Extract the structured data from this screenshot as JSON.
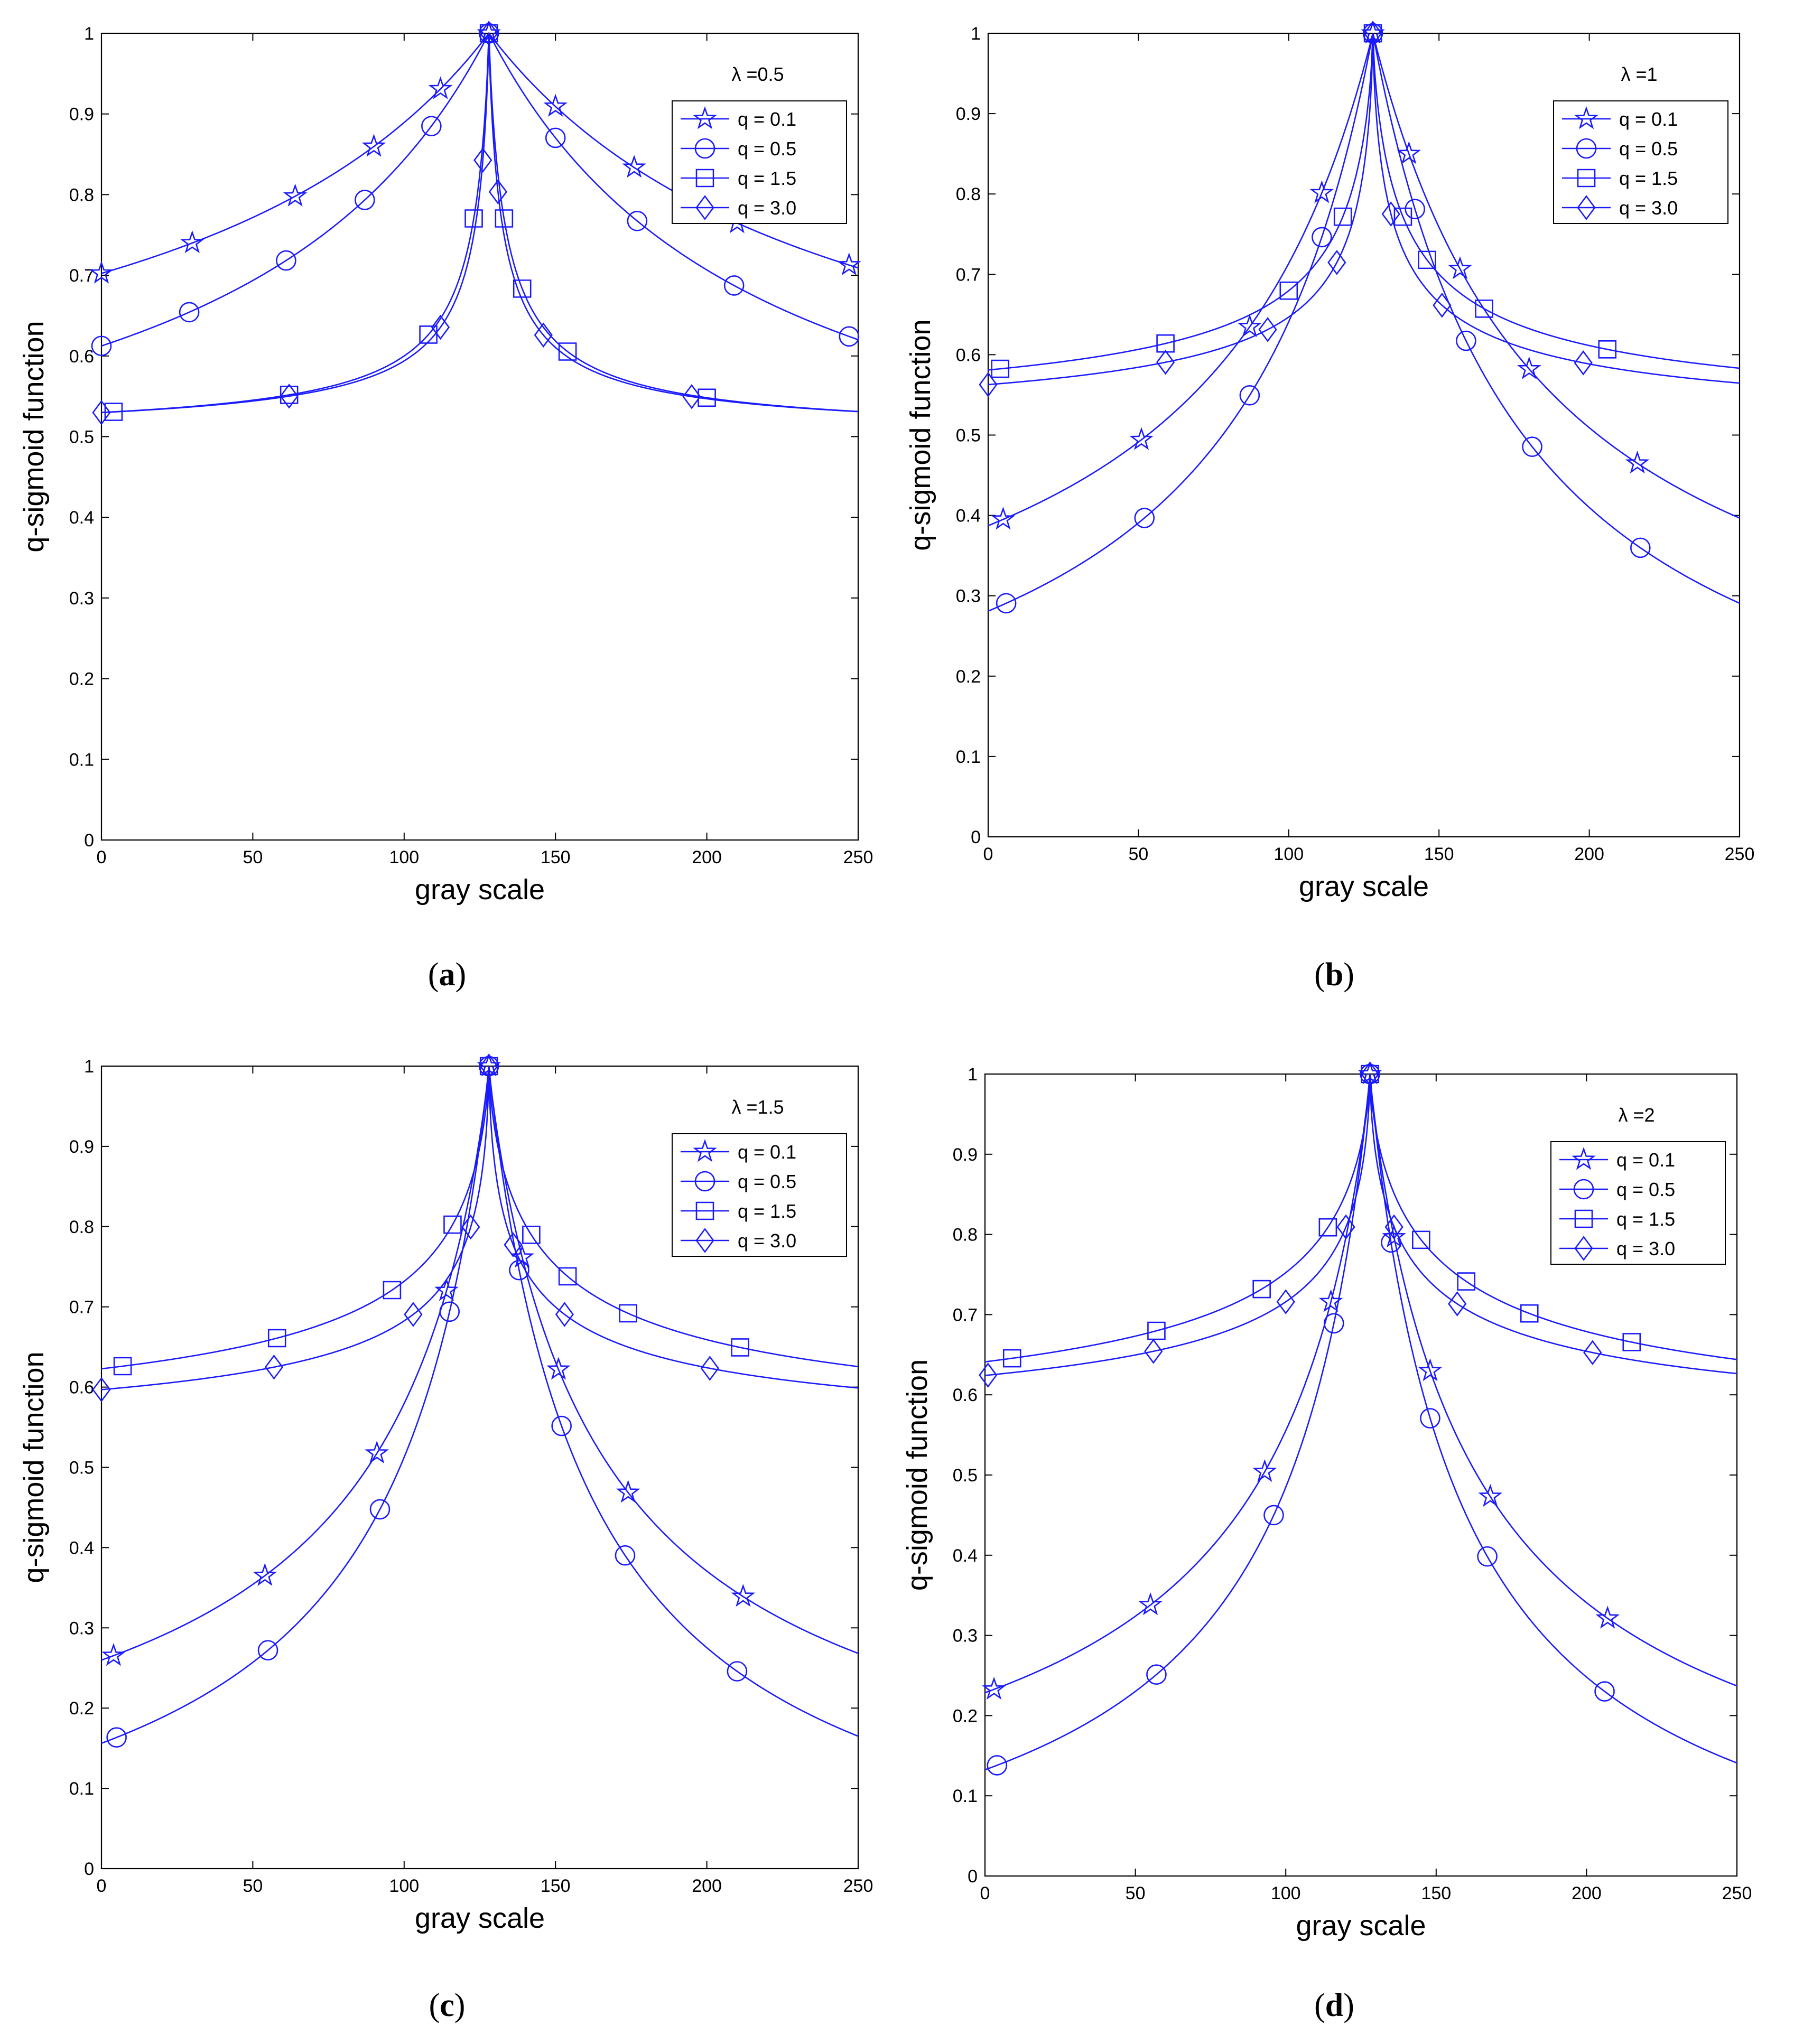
{
  "figure": {
    "captions": [
      "a",
      "b",
      "c",
      "d"
    ]
  },
  "chart_data": [
    {
      "type": "line",
      "panel_label": "a",
      "lambda": 0.5,
      "annotation": "λ =0.5",
      "xlabel": "gray scale",
      "ylabel": "q-sigmoid function",
      "xlim": [
        0,
        250
      ],
      "ylim": [
        0,
        1
      ],
      "xticks": [
        0,
        50,
        100,
        150,
        200,
        250
      ],
      "yticks": [
        0,
        0.1,
        0.2,
        0.3,
        0.4,
        0.5,
        0.6,
        0.7,
        0.8,
        0.9,
        1
      ],
      "peak": 128,
      "legend_position": "top-right",
      "series": [
        {
          "name": "q = 0.1",
          "marker": "star",
          "floor": 0.435,
          "width": 115,
          "shape": 1.0,
          "marker_x": [
            0,
            30,
            64,
            90,
            112,
            128,
            150,
            176,
            210,
            247
          ]
        },
        {
          "name": "q = 0.5",
          "marker": "circle",
          "floor": 0.34,
          "width": 90,
          "shape": 1.0,
          "marker_x": [
            0,
            29,
            61,
            87,
            109,
            128,
            150,
            177,
            209,
            247
          ]
        },
        {
          "name": "q = 1.5",
          "marker": "square",
          "floor": 0.5,
          "width": 6,
          "shape": 0.9,
          "marker_x": [
            4,
            62,
            108,
            123,
            128,
            133,
            139,
            154,
            200
          ]
        },
        {
          "name": "q = 3.0",
          "marker": "diamond",
          "floor": 0.5,
          "width": 5,
          "shape": 0.85,
          "marker_x": [
            0,
            62,
            112,
            126,
            128,
            131,
            146,
            195
          ]
        }
      ]
    },
    {
      "type": "line",
      "panel_label": "b",
      "lambda": 1,
      "annotation": "λ =1",
      "xlabel": "gray scale",
      "ylabel": "q-sigmoid function",
      "xlim": [
        0,
        250
      ],
      "ylim": [
        0,
        1
      ],
      "xticks": [
        0,
        50,
        100,
        150,
        200,
        250
      ],
      "yticks": [
        0,
        0.1,
        0.2,
        0.3,
        0.4,
        0.5,
        0.6,
        0.7,
        0.8,
        0.9,
        1
      ],
      "peak": 128,
      "legend_position": "top-right",
      "series": [
        {
          "name": "q = 0.1",
          "marker": "star",
          "floor": 0.1,
          "width": 60,
          "shape": 1.0,
          "marker_x": [
            5,
            51,
            87,
            111,
            128,
            140,
            157,
            180,
            216
          ]
        },
        {
          "name": "q = 0.5",
          "marker": "circle",
          "floor": 0.0,
          "width": 50,
          "shape": 1.0,
          "marker_x": [
            6,
            52,
            87,
            111,
            128,
            142,
            159,
            181,
            217
          ]
        },
        {
          "name": "q = 1.5",
          "marker": "square",
          "floor": 0.51,
          "width": 12,
          "shape": 0.75,
          "marker_x": [
            4,
            59,
            100,
            118,
            128,
            138,
            146,
            165,
            206
          ]
        },
        {
          "name": "q = 3.0",
          "marker": "diamond",
          "floor": 0.5,
          "width": 8,
          "shape": 0.7,
          "marker_x": [
            0,
            59,
            93,
            116,
            128,
            134,
            151,
            198
          ]
        }
      ]
    },
    {
      "type": "line",
      "panel_label": "c",
      "lambda": 1.5,
      "annotation": "λ =1.5",
      "xlabel": "gray scale",
      "ylabel": "q-sigmoid function",
      "xlim": [
        0,
        250
      ],
      "ylim": [
        0,
        1
      ],
      "xticks": [
        0,
        50,
        100,
        150,
        200,
        250
      ],
      "yticks": [
        0,
        0.1,
        0.2,
        0.3,
        0.4,
        0.5,
        0.6,
        0.7,
        0.8,
        0.9,
        1
      ],
      "peak": 128,
      "legend_position": "top-right",
      "series": [
        {
          "name": "q = 0.1",
          "marker": "star",
          "floor": 0.0,
          "width": 40,
          "shape": 0.9,
          "marker_x": [
            4,
            54,
            91,
            114,
            128,
            139,
            151,
            174,
            212
          ]
        },
        {
          "name": "q = 0.5",
          "marker": "circle",
          "floor": -0.09,
          "width": 35,
          "shape": 0.95,
          "marker_x": [
            5,
            55,
            92,
            115,
            128,
            138,
            152,
            173,
            210
          ]
        },
        {
          "name": "q = 1.5",
          "marker": "square",
          "floor": 0.52,
          "width": 20,
          "shape": 0.7,
          "marker_x": [
            7,
            58,
            96,
            116,
            128,
            142,
            154,
            174,
            211
          ]
        },
        {
          "name": "q = 3.0",
          "marker": "diamond",
          "floor": 0.52,
          "width": 10,
          "shape": 0.65,
          "marker_x": [
            0,
            57,
            103,
            122,
            128,
            136,
            153,
            201
          ]
        }
      ]
    },
    {
      "type": "line",
      "panel_label": "d",
      "lambda": 2,
      "annotation": "λ =2",
      "xlabel": "gray scale",
      "ylabel": "q-sigmoid function",
      "xlim": [
        0,
        250
      ],
      "ylim": [
        0,
        1
      ],
      "xticks": [
        0,
        50,
        100,
        150,
        200,
        250
      ],
      "yticks": [
        0,
        0.1,
        0.2,
        0.3,
        0.4,
        0.5,
        0.6,
        0.7,
        0.8,
        0.9,
        1
      ],
      "peak": 128,
      "legend_position": "top-right",
      "series": [
        {
          "name": "q = 0.1",
          "marker": "star",
          "floor": -0.03,
          "width": 38,
          "shape": 0.9,
          "marker_x": [
            3,
            55,
            93,
            115,
            128,
            136,
            148,
            168,
            207
          ]
        },
        {
          "name": "q = 0.5",
          "marker": "circle",
          "floor": -0.1,
          "width": 32,
          "shape": 0.95,
          "marker_x": [
            4,
            57,
            96,
            116,
            128,
            135,
            148,
            167,
            206
          ]
        },
        {
          "name": "q = 1.5",
          "marker": "square",
          "floor": 0.53,
          "width": 24,
          "shape": 0.7,
          "marker_x": [
            9,
            57,
            92,
            114,
            128,
            145,
            160,
            181,
            215
          ]
        },
        {
          "name": "q = 3.0",
          "marker": "diamond",
          "floor": 0.535,
          "width": 14,
          "shape": 0.65,
          "marker_x": [
            1,
            56,
            100,
            120,
            128,
            136,
            157,
            202
          ]
        }
      ]
    }
  ]
}
